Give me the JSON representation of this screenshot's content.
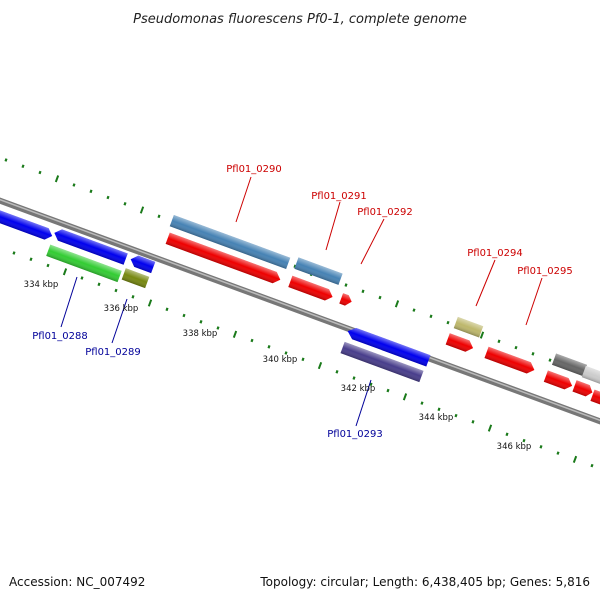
{
  "title": "Pseudomonas fluorescens Pf0-1, complete genome",
  "footer": {
    "accession": "Accession: NC_007492",
    "summary": "Topology: circular; Length: 6,438,405 bp; Genes: 5,816"
  },
  "colors": {
    "backbone": "#777777",
    "tick": "#1a7a1a",
    "label_forward": "#cc0000",
    "label_reverse": "#000099"
  },
  "scale_labels": [
    "334 kbp",
    "336 kbp",
    "338 kbp",
    "340 kbp",
    "342 kbp",
    "344 kbp",
    "346 kbp"
  ],
  "genes": [
    {
      "name": "",
      "color": "#0000ee",
      "strand": "reverse"
    },
    {
      "name": "",
      "color": "#0000ee",
      "strand": "reverse"
    },
    {
      "name": "Pfl01_0288",
      "color": "#33cc33",
      "strand": "reverse"
    },
    {
      "name": "",
      "color": "#0000ee",
      "strand": "reverse"
    },
    {
      "name": "Pfl01_0289",
      "color": "#778811",
      "strand": "reverse"
    },
    {
      "name": "Pfl01_0290",
      "color": "#4682b4",
      "strand": "forward"
    },
    {
      "name": "",
      "color": "#ee0000",
      "strand": "forward"
    },
    {
      "name": "Pfl01_0291",
      "color": "#4682b4",
      "strand": "forward"
    },
    {
      "name": "",
      "color": "#ee0000",
      "strand": "forward"
    },
    {
      "name": "Pfl01_0292",
      "color": "#ee0000",
      "strand": "forward"
    },
    {
      "name": "",
      "color": "#0000ee",
      "strand": "reverse"
    },
    {
      "name": "Pfl01_0293",
      "color": "#483d8b",
      "strand": "reverse"
    },
    {
      "name": "Pfl01_0294",
      "color": "#bdb76b",
      "strand": "forward"
    },
    {
      "name": "",
      "color": "#ee0000",
      "strand": "forward"
    },
    {
      "name": "Pfl01_0295",
      "color": "#ee0000",
      "strand": "forward"
    },
    {
      "name": "",
      "color": "#666666",
      "strand": "forward"
    },
    {
      "name": "",
      "color": "#cccccc",
      "strand": "forward"
    },
    {
      "name": "",
      "color": "#ee0000",
      "strand": "forward"
    },
    {
      "name": "",
      "color": "#ee0000",
      "strand": "forward"
    }
  ]
}
